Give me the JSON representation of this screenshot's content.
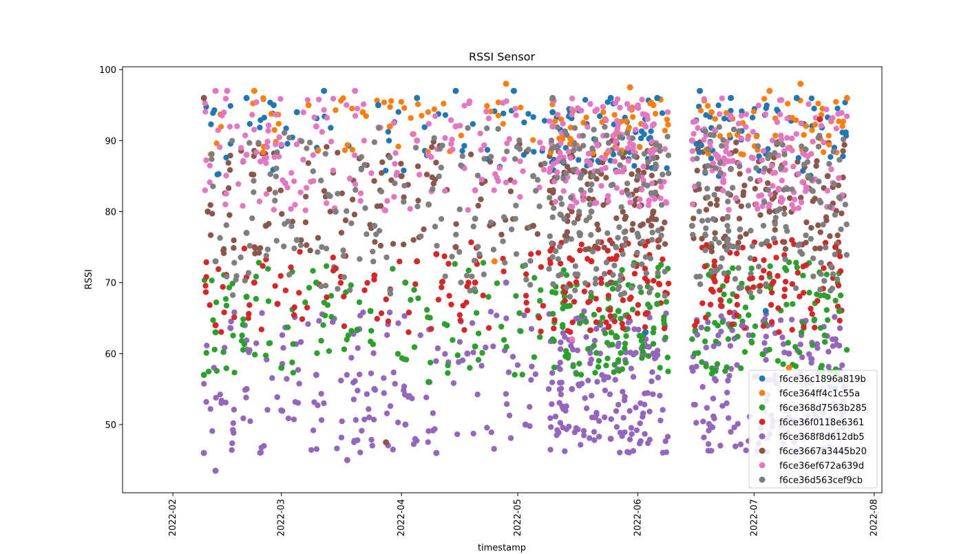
{
  "chart_data": {
    "type": "scatter",
    "title": "RSSI Sensor",
    "xlabel": "timestamp",
    "ylabel": "RSSI",
    "x_type": "date",
    "xlim": [
      "2022-01-19",
      "2022-08-03"
    ],
    "ylim": [
      40.4,
      100.4
    ],
    "x_ticks": [
      "2022-02",
      "2022-03",
      "2022-04",
      "2022-05",
      "2022-06",
      "2022-07",
      "2022-08"
    ],
    "y_ticks": [
      50,
      60,
      70,
      80,
      90,
      100
    ],
    "grid": false,
    "legend": "lower-right",
    "series": [
      {
        "name": "f6ce36c1896a819b",
        "color": "#1f77b4",
        "values": [
          {
            "x": "2022-02-20",
            "y": 96
          },
          {
            "x": "2022-02-27",
            "y": 95
          },
          {
            "x": "2022-03-05",
            "y": 94
          },
          {
            "x": "2022-03-12",
            "y": 97
          },
          {
            "x": "2022-03-26",
            "y": 95
          },
          {
            "x": "2022-04-05",
            "y": 96
          },
          {
            "x": "2022-04-15",
            "y": 97
          },
          {
            "x": "2022-04-30",
            "y": 97
          },
          {
            "x": "2022-05-10",
            "y": 94
          },
          {
            "x": "2022-05-25",
            "y": 96
          },
          {
            "x": "2022-06-03",
            "y": 63
          },
          {
            "x": "2022-06-06",
            "y": 96
          },
          {
            "x": "2022-06-17",
            "y": 97
          },
          {
            "x": "2022-06-25",
            "y": 96
          },
          {
            "x": "2022-07-04",
            "y": 66
          },
          {
            "x": "2022-07-12",
            "y": 96
          },
          {
            "x": "2022-07-22",
            "y": 55
          }
        ]
      },
      {
        "name": "f6ce364ff4c1c55a",
        "color": "#ff7f0e",
        "values": [
          {
            "x": "2022-02-22",
            "y": 97
          },
          {
            "x": "2022-03-08",
            "y": 95
          },
          {
            "x": "2022-03-22",
            "y": 94
          },
          {
            "x": "2022-03-29",
            "y": 92
          },
          {
            "x": "2022-04-25",
            "y": 73
          },
          {
            "x": "2022-04-28",
            "y": 98
          },
          {
            "x": "2022-05-30",
            "y": 97.5
          },
          {
            "x": "2022-06-05",
            "y": 95
          },
          {
            "x": "2022-06-20",
            "y": 94
          },
          {
            "x": "2022-07-05",
            "y": 97
          },
          {
            "x": "2022-07-10",
            "y": 58
          },
          {
            "x": "2022-07-13",
            "y": 98
          },
          {
            "x": "2022-07-25",
            "y": 96
          }
        ]
      },
      {
        "name": "f6ce368d7563b285",
        "color": "#2ca02c",
        "values": [
          {
            "x": "2022-02-09",
            "y": 57
          },
          {
            "x": "2022-02-12",
            "y": 63
          },
          {
            "x": "2022-02-20",
            "y": 68
          },
          {
            "x": "2022-03-01",
            "y": 58
          },
          {
            "x": "2022-03-10",
            "y": 70
          },
          {
            "x": "2022-03-24",
            "y": 66
          },
          {
            "x": "2022-04-02",
            "y": 70
          },
          {
            "x": "2022-04-08",
            "y": 56
          },
          {
            "x": "2022-04-20",
            "y": 61
          },
          {
            "x": "2022-05-10",
            "y": 62
          },
          {
            "x": "2022-05-20",
            "y": 68
          },
          {
            "x": "2022-05-27",
            "y": 66
          },
          {
            "x": "2022-06-06",
            "y": 67
          },
          {
            "x": "2022-06-15",
            "y": 90
          },
          {
            "x": "2022-07-20",
            "y": 68
          },
          {
            "x": "2022-07-23",
            "y": 66
          }
        ]
      },
      {
        "name": "f6ce36f0118e6361",
        "color": "#d62728",
        "values": [
          {
            "x": "2022-02-12",
            "y": 64
          },
          {
            "x": "2022-02-22",
            "y": 70
          },
          {
            "x": "2022-02-28",
            "y": 67
          },
          {
            "x": "2022-03-15",
            "y": 72
          },
          {
            "x": "2022-03-25",
            "y": 71
          },
          {
            "x": "2022-04-05",
            "y": 73
          },
          {
            "x": "2022-04-10",
            "y": 74
          },
          {
            "x": "2022-04-20",
            "y": 70
          },
          {
            "x": "2022-05-20",
            "y": 73
          },
          {
            "x": "2022-06-20",
            "y": 69
          },
          {
            "x": "2022-07-18",
            "y": 93
          },
          {
            "x": "2022-07-22",
            "y": 75
          }
        ]
      },
      {
        "name": "f6ce368f8d612db5",
        "color": "#9467bd",
        "values": [
          {
            "x": "2022-02-09",
            "y": 46
          },
          {
            "x": "2022-02-12",
            "y": 43.5
          },
          {
            "x": "2022-02-20",
            "y": 55
          },
          {
            "x": "2022-03-01",
            "y": 52
          },
          {
            "x": "2022-03-10",
            "y": 57
          },
          {
            "x": "2022-03-18",
            "y": 45
          },
          {
            "x": "2022-03-25",
            "y": 55
          },
          {
            "x": "2022-04-02",
            "y": 50
          },
          {
            "x": "2022-04-10",
            "y": 46
          },
          {
            "x": "2022-04-18",
            "y": 60
          },
          {
            "x": "2022-04-28",
            "y": 70
          },
          {
            "x": "2022-05-03",
            "y": 50
          },
          {
            "x": "2022-05-15",
            "y": 55
          },
          {
            "x": "2022-05-25",
            "y": 48
          },
          {
            "x": "2022-06-05",
            "y": 60
          },
          {
            "x": "2022-06-15",
            "y": 58
          },
          {
            "x": "2022-06-28",
            "y": 64
          },
          {
            "x": "2022-07-10",
            "y": 60
          },
          {
            "x": "2022-07-22",
            "y": 62
          }
        ]
      },
      {
        "name": "f6ce3667a3445b20",
        "color": "#8c564b",
        "values": [
          {
            "x": "2022-02-09",
            "y": 96
          },
          {
            "x": "2022-02-10",
            "y": 80
          },
          {
            "x": "2022-02-25",
            "y": 78
          },
          {
            "x": "2022-03-28",
            "y": 47.5
          },
          {
            "x": "2022-04-01",
            "y": 85
          },
          {
            "x": "2022-04-15",
            "y": 75
          },
          {
            "x": "2022-05-05",
            "y": 78
          },
          {
            "x": "2022-05-25",
            "y": 70
          },
          {
            "x": "2022-06-05",
            "y": 80
          },
          {
            "x": "2022-06-20",
            "y": 75
          },
          {
            "x": "2022-07-05",
            "y": 80
          },
          {
            "x": "2022-07-20",
            "y": 85
          }
        ]
      },
      {
        "name": "f6ce36ef672a639d",
        "color": "#e377c2",
        "values": [
          {
            "x": "2022-02-12",
            "y": 97
          },
          {
            "x": "2022-02-15",
            "y": 97
          },
          {
            "x": "2022-02-20",
            "y": 88
          },
          {
            "x": "2022-03-02",
            "y": 84
          },
          {
            "x": "2022-03-10",
            "y": 92
          },
          {
            "x": "2022-03-20",
            "y": 97
          },
          {
            "x": "2022-04-05",
            "y": 90
          },
          {
            "x": "2022-04-15",
            "y": 92
          },
          {
            "x": "2022-04-20",
            "y": 83
          },
          {
            "x": "2022-05-10",
            "y": 92
          },
          {
            "x": "2022-05-15",
            "y": 62
          },
          {
            "x": "2022-06-15",
            "y": 90
          }
        ]
      },
      {
        "name": "f6ce36d563cef9cb",
        "color": "#7f7f7f",
        "values": [
          {
            "x": "2022-02-12",
            "y": 73
          },
          {
            "x": "2022-02-20",
            "y": 77
          },
          {
            "x": "2022-03-05",
            "y": 76
          },
          {
            "x": "2022-03-15",
            "y": 80
          },
          {
            "x": "2022-03-25",
            "y": 78
          },
          {
            "x": "2022-04-08",
            "y": 81
          },
          {
            "x": "2022-04-20",
            "y": 79
          },
          {
            "x": "2022-05-05",
            "y": 85
          },
          {
            "x": "2022-05-10",
            "y": 96
          },
          {
            "x": "2022-05-20",
            "y": 80
          },
          {
            "x": "2022-06-01",
            "y": 85
          },
          {
            "x": "2022-06-15",
            "y": 78
          },
          {
            "x": "2022-06-25",
            "y": 86
          },
          {
            "x": "2022-07-05",
            "y": 88
          },
          {
            "x": "2022-07-15",
            "y": 85
          },
          {
            "x": "2022-07-23",
            "y": 82
          }
        ]
      }
    ]
  }
}
